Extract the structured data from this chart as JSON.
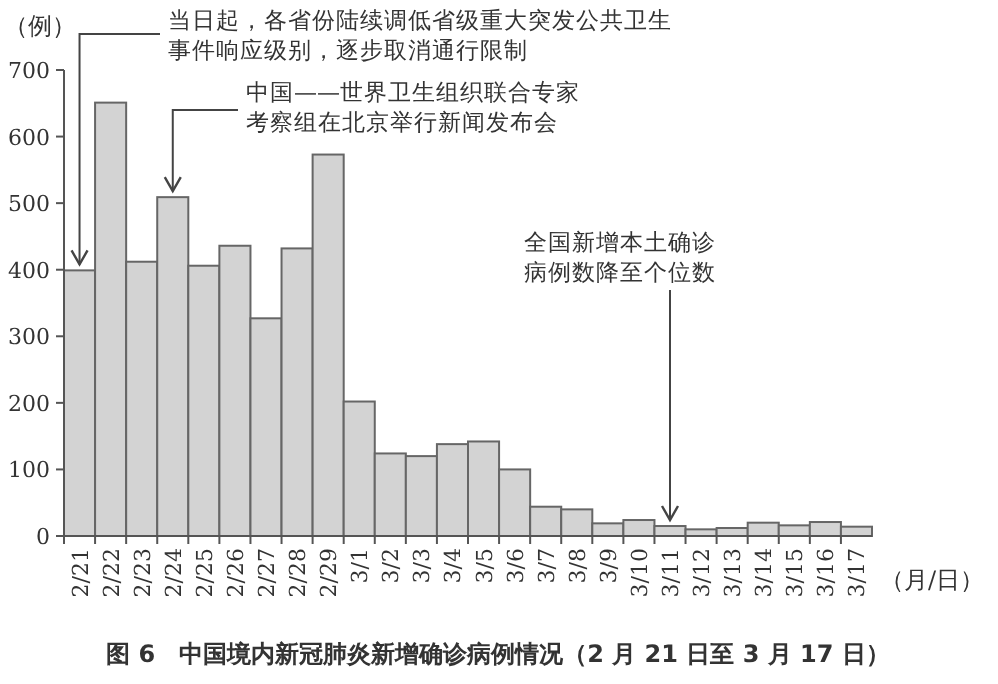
{
  "chart_data": {
    "type": "bar",
    "title": "图 6　中国境内新冠肺炎新增确诊病例情况（2 月 21 日至 3 月 17 日）",
    "ylabel": "（例）",
    "xlabel": "（月/日）",
    "categories": [
      "2/21",
      "2/22",
      "2/23",
      "2/24",
      "2/25",
      "2/26",
      "2/27",
      "2/28",
      "2/29",
      "3/1",
      "3/2",
      "3/3",
      "3/4",
      "3/5",
      "3/6",
      "3/7",
      "3/8",
      "3/9",
      "3/10",
      "3/11",
      "3/12",
      "3/13",
      "3/14",
      "3/15",
      "3/16",
      "3/17"
    ],
    "values": [
      399,
      651,
      412,
      509,
      406,
      436,
      327,
      432,
      573,
      202,
      124,
      120,
      138,
      142,
      100,
      44,
      40,
      19,
      24,
      15,
      10,
      12,
      20,
      16,
      21,
      14
    ],
    "color": "#d3d3d3",
    "ylim": [
      0,
      700
    ],
    "yticks": [
      0,
      100,
      200,
      300,
      400,
      500,
      600,
      700
    ],
    "annotations": [
      {
        "text": "当日起，各省份陆续调低省级重大突发公共卫生事件响应级别，逐步取消通行限制",
        "x": "2/21",
        "y": 399
      },
      {
        "text": "中国——世界卫生组织联合专家考察组在北京举行新闻发布会",
        "x": "2/24",
        "y": 509
      },
      {
        "text": "全国新增本土确诊病例数降至个位数",
        "x": "3/11",
        "y": 15
      }
    ],
    "grid": false
  }
}
